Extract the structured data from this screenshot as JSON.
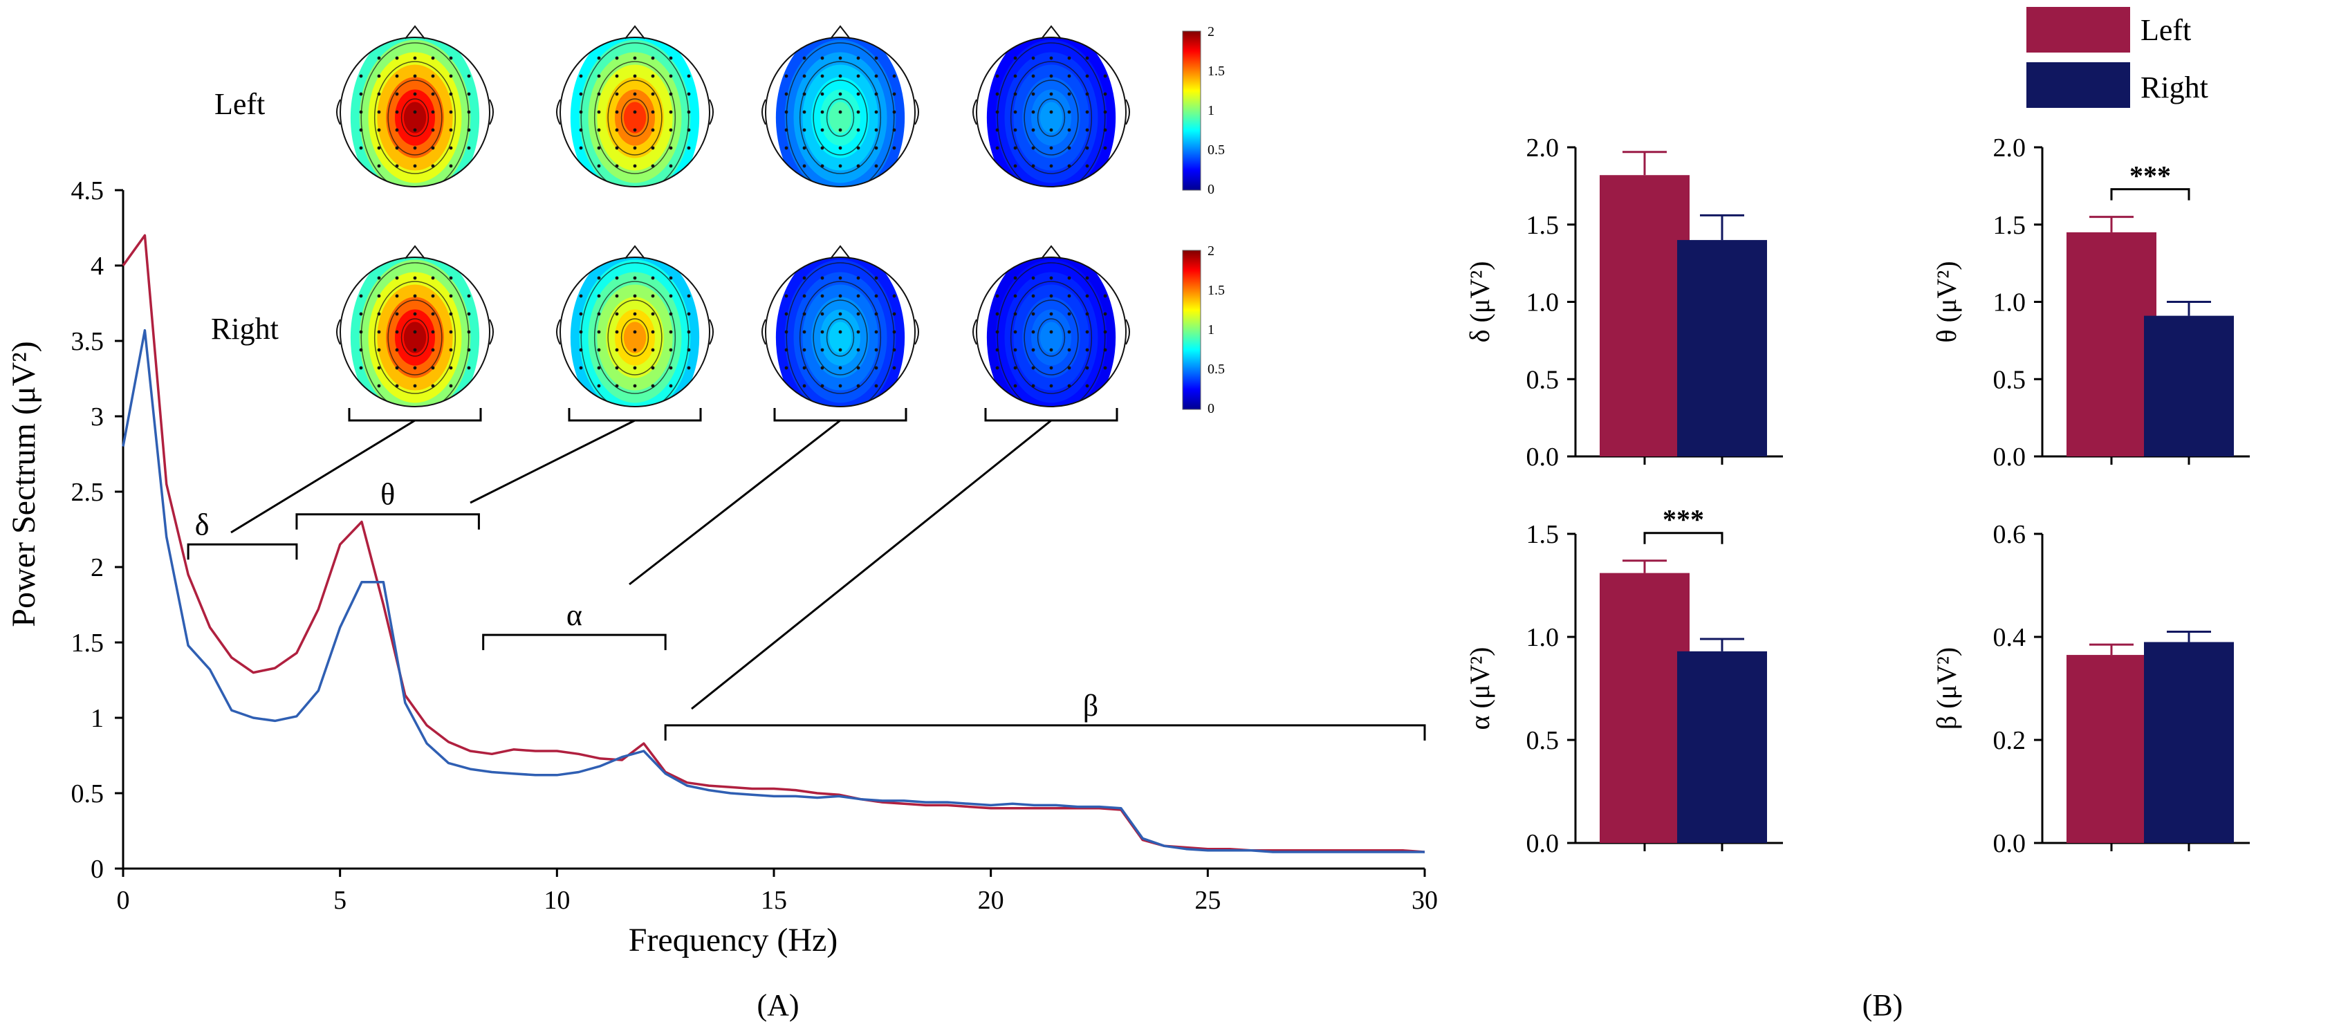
{
  "colors": {
    "left": "#9b1b46",
    "right": "#101760",
    "line_left": "#b0203f",
    "line_right": "#2f5fb3",
    "axis": "#000000"
  },
  "legend": {
    "left_label": "Left",
    "right_label": "Right"
  },
  "panels": {
    "a_label": "(A)",
    "b_label": "(B)"
  },
  "topomap": {
    "row_labels": [
      "Left",
      "Right"
    ],
    "colorbar": {
      "max": "2",
      "t1": "1.5",
      "t2": "1",
      "t3": "0.5",
      "min": "0"
    },
    "left_levels": [
      1.9,
      1.65,
      0.9,
      0.55
    ],
    "right_levels": [
      1.9,
      1.45,
      0.65,
      0.5
    ]
  },
  "chart_data": [
    {
      "type": "line",
      "title": "",
      "xlabel": "Frequency (Hz)",
      "ylabel": "Power Sectrum (μV²)",
      "xlim": [
        0,
        30
      ],
      "ylim": [
        0,
        4.5
      ],
      "xticks": [
        "0",
        "5",
        "10",
        "15",
        "20",
        "25",
        "30"
      ],
      "yticks": [
        "0",
        "0.5",
        "1",
        "1.5",
        "2",
        "2.5",
        "3",
        "3.5",
        "4",
        "4.5"
      ],
      "x": [
        0,
        0.5,
        1,
        1.5,
        2,
        2.5,
        3,
        3.5,
        4,
        4.5,
        5,
        5.5,
        6,
        6.5,
        7,
        7.5,
        8,
        8.5,
        9,
        9.5,
        10,
        10.5,
        11,
        11.5,
        12,
        12.5,
        13,
        13.5,
        14,
        14.5,
        15,
        15.5,
        16,
        16.5,
        17,
        17.5,
        18,
        18.5,
        19,
        19.5,
        20,
        20.5,
        21,
        21.5,
        22,
        22.5,
        23,
        23.5,
        24,
        24.5,
        25,
        25.5,
        26,
        26.5,
        27,
        27.5,
        28,
        28.5,
        29,
        29.5,
        30
      ],
      "series": [
        {
          "name": "Left",
          "values": [
            4.0,
            4.2,
            2.55,
            1.95,
            1.6,
            1.4,
            1.3,
            1.33,
            1.43,
            1.72,
            2.15,
            2.3,
            1.75,
            1.15,
            0.95,
            0.84,
            0.78,
            0.76,
            0.79,
            0.78,
            0.78,
            0.76,
            0.73,
            0.72,
            0.83,
            0.64,
            0.57,
            0.55,
            0.54,
            0.53,
            0.53,
            0.52,
            0.5,
            0.49,
            0.46,
            0.44,
            0.43,
            0.42,
            0.42,
            0.41,
            0.4,
            0.4,
            0.4,
            0.4,
            0.4,
            0.4,
            0.39,
            0.19,
            0.15,
            0.14,
            0.13,
            0.13,
            0.12,
            0.12,
            0.12,
            0.12,
            0.12,
            0.12,
            0.12,
            0.12,
            0.11
          ]
        },
        {
          "name": "Right",
          "values": [
            2.8,
            3.57,
            2.2,
            1.48,
            1.32,
            1.05,
            1.0,
            0.98,
            1.01,
            1.18,
            1.6,
            1.9,
            1.9,
            1.1,
            0.83,
            0.7,
            0.66,
            0.64,
            0.63,
            0.62,
            0.62,
            0.64,
            0.68,
            0.74,
            0.78,
            0.63,
            0.55,
            0.52,
            0.5,
            0.49,
            0.48,
            0.48,
            0.47,
            0.48,
            0.46,
            0.45,
            0.45,
            0.44,
            0.44,
            0.43,
            0.42,
            0.43,
            0.42,
            0.42,
            0.41,
            0.41,
            0.4,
            0.2,
            0.15,
            0.13,
            0.12,
            0.12,
            0.12,
            0.11,
            0.11,
            0.11,
            0.11,
            0.11,
            0.11,
            0.11,
            0.11
          ]
        }
      ],
      "bands": [
        {
          "label": "δ",
          "range": [
            1.5,
            4.0
          ],
          "y": 2.15
        },
        {
          "label": "θ",
          "range": [
            4.0,
            8.2
          ],
          "y": 2.35
        },
        {
          "label": "α",
          "range": [
            8.3,
            12.5
          ],
          "y": 1.55
        },
        {
          "label": "β",
          "range": [
            12.5,
            30.0
          ],
          "y": 0.95
        }
      ]
    },
    {
      "type": "bar",
      "band": "δ",
      "ylabel": "δ (μV²)",
      "ylim": [
        0,
        2.0
      ],
      "yticks": [
        "0.0",
        "0.5",
        "1.0",
        "1.5",
        "2.0"
      ],
      "categories": [
        "Left",
        "Right"
      ],
      "values": [
        1.82,
        1.4
      ],
      "errors": [
        0.15,
        0.16
      ],
      "significance": ""
    },
    {
      "type": "bar",
      "band": "θ",
      "ylabel": "θ (μV²)",
      "ylim": [
        0,
        2.0
      ],
      "yticks": [
        "0.0",
        "0.5",
        "1.0",
        "1.5",
        "2.0"
      ],
      "categories": [
        "Left",
        "Right"
      ],
      "values": [
        1.45,
        0.91
      ],
      "errors": [
        0.1,
        0.09
      ],
      "significance": "***"
    },
    {
      "type": "bar",
      "band": "α",
      "ylabel": "α (μV²)",
      "ylim": [
        0,
        1.5
      ],
      "yticks": [
        "0.0",
        "0.5",
        "1.0",
        "1.5"
      ],
      "categories": [
        "Left",
        "Right"
      ],
      "values": [
        1.31,
        0.93
      ],
      "errors": [
        0.06,
        0.06
      ],
      "significance": "***"
    },
    {
      "type": "bar",
      "band": "β",
      "ylabel": "β (μV²)",
      "ylim": [
        0,
        0.6
      ],
      "yticks": [
        "0.0",
        "0.2",
        "0.4",
        "0.6"
      ],
      "categories": [
        "Left",
        "Right"
      ],
      "values": [
        0.365,
        0.39
      ],
      "errors": [
        0.02,
        0.02
      ],
      "significance": ""
    }
  ]
}
